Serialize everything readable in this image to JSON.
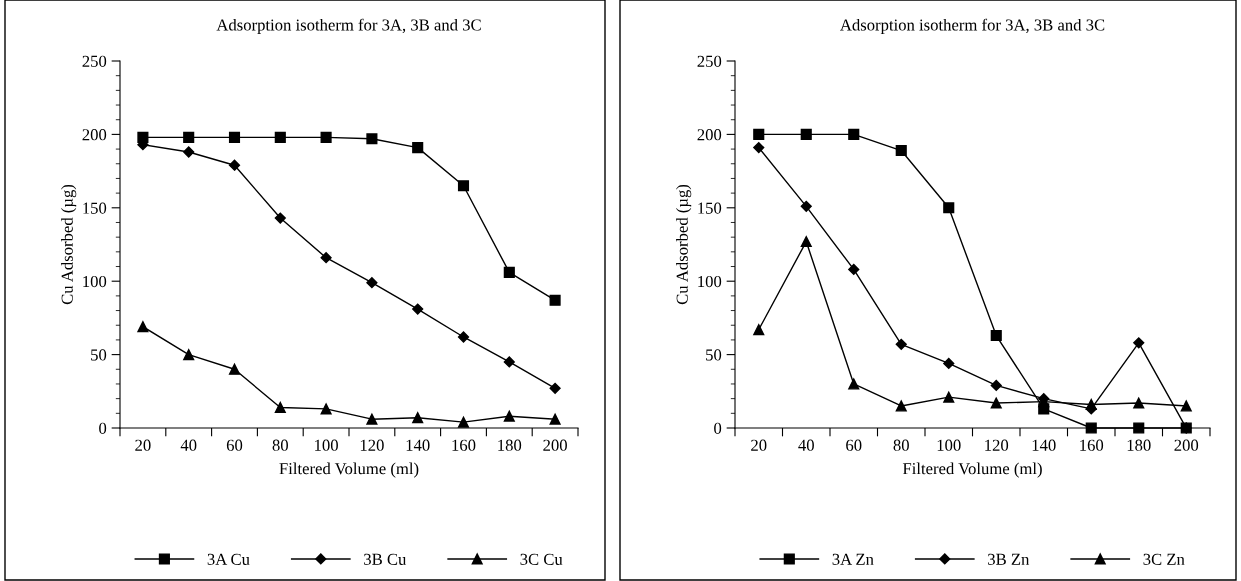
{
  "chart_data": [
    {
      "type": "line",
      "title": "Adsorption isotherm for 3A, 3B and 3C",
      "xlabel": "Filtered Volume (ml)",
      "ylabel": "Cu Adsorbed (µg)",
      "categories": [
        "20",
        "40",
        "60",
        "80",
        "100",
        "120",
        "140",
        "160",
        "180",
        "200"
      ],
      "series": [
        {
          "name": "3A Cu",
          "color": "#000000",
          "marker": "square",
          "values": [
            198,
            198,
            198,
            198,
            198,
            197,
            191,
            165,
            106,
            87
          ]
        },
        {
          "name": "3B Cu",
          "color": "#000000",
          "marker": "diamond",
          "values": [
            193,
            188,
            179,
            143,
            116,
            99,
            81,
            62,
            45,
            27
          ]
        },
        {
          "name": "3C Cu",
          "color": "#000000",
          "marker": "triangle",
          "values": [
            69,
            50,
            40,
            14,
            13,
            6,
            7,
            4,
            8,
            6
          ]
        }
      ],
      "ylim": [
        0,
        250
      ],
      "yticks": [
        0,
        {
          "value": 10,
          "label": null
        },
        {
          "value": 20,
          "label": null
        },
        {
          "value": 30,
          "label": null
        },
        {
          "value": 40,
          "label": null
        },
        50,
        {
          "value": 60,
          "label": null
        },
        {
          "value": 70,
          "label": null
        },
        {
          "value": 80,
          "label": null
        },
        {
          "value": 90,
          "label": null
        },
        100,
        {
          "value": 110,
          "label": null
        },
        {
          "value": 120,
          "label": null
        },
        {
          "value": 130,
          "label": null
        },
        {
          "value": 140,
          "label": null
        },
        150,
        {
          "value": 160,
          "label": null
        },
        {
          "value": 170,
          "label": null
        },
        {
          "value": 180,
          "label": null
        },
        {
          "value": 190,
          "label": null
        },
        200,
        {
          "value": 210,
          "label": null
        },
        {
          "value": 220,
          "label": null
        },
        {
          "value": 230,
          "label": null
        },
        {
          "value": 240,
          "label": null
        },
        250
      ],
      "grid": false,
      "legend": "bottom",
      "line_style": "solid"
    },
    {
      "type": "line",
      "title": "Adsorption isotherm for 3A, 3B and 3C",
      "xlabel": "Filtered Volume (ml)",
      "ylabel": "Cu Adsorbed (µg)",
      "categories": [
        "20",
        "40",
        "60",
        "80",
        "100",
        "120",
        "140",
        "160",
        "180",
        "200"
      ],
      "series": [
        {
          "name": "3A Zn",
          "color": "#000000",
          "marker": "square",
          "values": [
            200,
            200,
            200,
            189,
            150,
            63,
            13,
            0,
            0,
            0
          ]
        },
        {
          "name": "3B Zn",
          "color": "#000000",
          "marker": "diamond",
          "values": [
            191,
            151,
            108,
            57,
            44,
            29,
            20,
            13,
            58,
            0
          ]
        },
        {
          "name": "3C Zn",
          "color": "#000000",
          "marker": "triangle",
          "values": [
            67,
            127,
            30,
            15,
            21,
            17,
            18,
            16,
            17,
            15
          ]
        }
      ],
      "ylim": [
        0,
        250
      ],
      "yticks": [
        0,
        {
          "value": 10,
          "label": null
        },
        {
          "value": 20,
          "label": null
        },
        {
          "value": 30,
          "label": null
        },
        {
          "value": 40,
          "label": null
        },
        50,
        {
          "value": 60,
          "label": null
        },
        {
          "value": 70,
          "label": null
        },
        {
          "value": 80,
          "label": null
        },
        {
          "value": 90,
          "label": null
        },
        100,
        {
          "value": 110,
          "label": null
        },
        {
          "value": 120,
          "label": null
        },
        {
          "value": 130,
          "label": null
        },
        {
          "value": 140,
          "label": null
        },
        150,
        {
          "value": 160,
          "label": null
        },
        {
          "value": 170,
          "label": null
        },
        {
          "value": 180,
          "label": null
        },
        {
          "value": 190,
          "label": null
        },
        200,
        {
          "value": 210,
          "label": null
        },
        {
          "value": 220,
          "label": null
        },
        {
          "value": 230,
          "label": null
        },
        {
          "value": 240,
          "label": null
        },
        250
      ],
      "grid": false,
      "legend": "bottom",
      "line_style": "solid"
    }
  ]
}
